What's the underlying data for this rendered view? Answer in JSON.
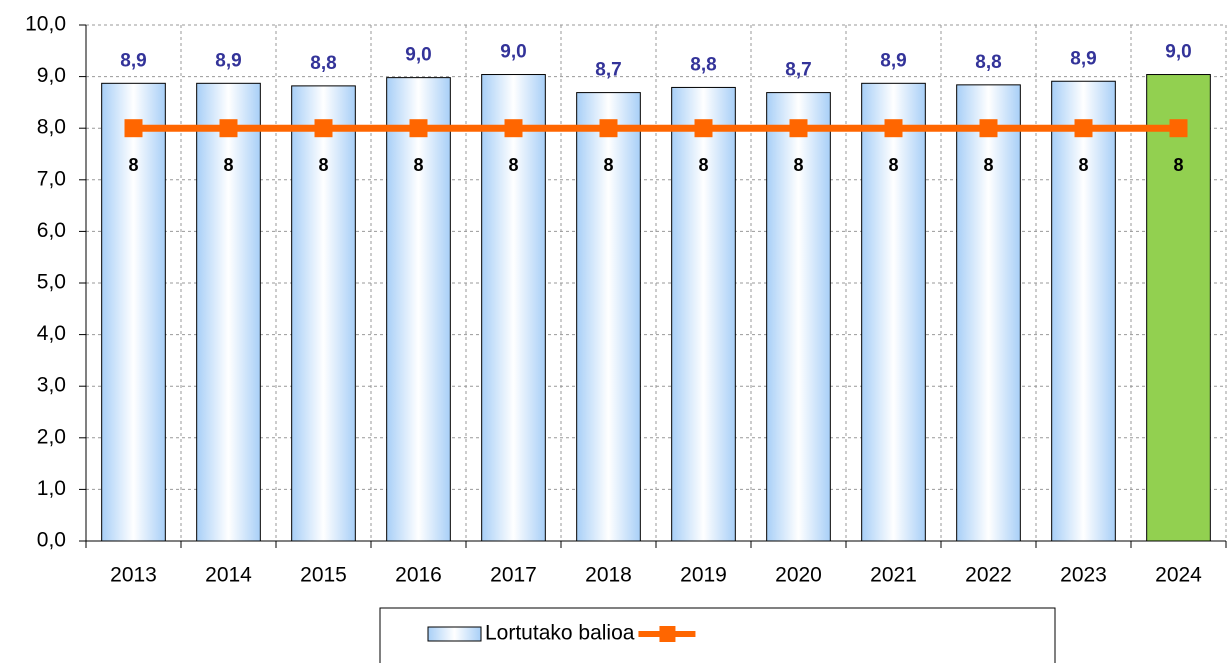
{
  "chart_data": {
    "type": "bar",
    "categories": [
      "2013",
      "2014",
      "2015",
      "2016",
      "2017",
      "2018",
      "2019",
      "2020",
      "2021",
      "2022",
      "2023",
      "2024"
    ],
    "series": [
      {
        "name": "Lortutako balioa",
        "type": "bar",
        "color": "#a8cff7",
        "colors": [
          "#a8cff7",
          "#a8cff7",
          "#a8cff7",
          "#a8cff7",
          "#a8cff7",
          "#a8cff7",
          "#a8cff7",
          "#a8cff7",
          "#a8cff7",
          "#a8cff7",
          "#a8cff7",
          "#92d050"
        ],
        "values": [
          8.87,
          8.87,
          8.82,
          8.98,
          9.04,
          8.69,
          8.79,
          8.69,
          8.87,
          8.84,
          8.91,
          9.04
        ],
        "value_labels": [
          "8,9",
          "8,9",
          "8,8",
          "9,0",
          "9,0",
          "8,7",
          "8,8",
          "8,7",
          "8,9",
          "8,8",
          "8,9",
          "9,0"
        ]
      },
      {
        "type": "line",
        "color": "#ff6600",
        "values": [
          8,
          8,
          8,
          8,
          8,
          8,
          8,
          8,
          8,
          8,
          8,
          8
        ]
      }
    ],
    "ylim": [
      0,
      10
    ],
    "yticks": [
      {
        "value": 0,
        "label": "0,0"
      },
      {
        "value": 1,
        "label": "1,0"
      },
      {
        "value": 2,
        "label": "2,0"
      },
      {
        "value": 3,
        "label": "3,0"
      },
      {
        "value": 4,
        "label": "4,0"
      },
      {
        "value": 5,
        "label": "5,0"
      },
      {
        "value": 6,
        "label": "6,0"
      },
      {
        "value": 7,
        "label": "7,0"
      },
      {
        "value": 8,
        "label": "8,0"
      },
      {
        "value": 9,
        "label": "9,0"
      },
      {
        "value": 10,
        "label": "10,0"
      }
    ],
    "grid": true
  }
}
